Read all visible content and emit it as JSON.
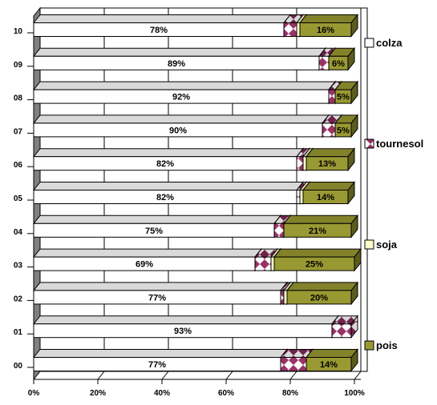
{
  "chart_data": {
    "type": "bar",
    "orientation": "horizontal",
    "stacked": true,
    "percent": true,
    "three_d": true,
    "categories": [
      "10",
      "09",
      "08",
      "07",
      "06",
      "05",
      "04",
      "03",
      "02",
      "01",
      "00"
    ],
    "series": [
      {
        "name": "colza",
        "color": "#ffffff",
        "pattern": "none",
        "values": [
          78,
          89,
          92,
          90,
          82,
          82,
          75,
          69,
          77,
          93,
          77
        ],
        "labels": [
          "78%",
          "89%",
          "92%",
          "90%",
          "82%",
          "82%",
          "75%",
          "69%",
          "77%",
          "93%",
          "77%"
        ]
      },
      {
        "name": "tournesol",
        "color": "#993366",
        "pattern": "diamond",
        "values": [
          4,
          3,
          2,
          4,
          2,
          1,
          3,
          5,
          1,
          6,
          8
        ],
        "labels": [
          "",
          "",
          "",
          "",
          "",
          "",
          "",
          "",
          "",
          "",
          ""
        ]
      },
      {
        "name": "soja",
        "color": "#ffffcc",
        "pattern": "none",
        "values": [
          1,
          0,
          0,
          0,
          1,
          1,
          0,
          1,
          1,
          0,
          0
        ],
        "labels": [
          "",
          "",
          "",
          "",
          "",
          "",
          "",
          "",
          "",
          "",
          ""
        ]
      },
      {
        "name": "pois",
        "color": "#999933",
        "pattern": "none",
        "values": [
          16,
          6,
          5,
          5,
          13,
          14,
          21,
          25,
          20,
          0,
          14
        ],
        "labels": [
          "16%",
          "6%",
          "5%",
          "5%",
          "13%",
          "14%",
          "21%",
          "25%",
          "20%",
          "",
          "14%"
        ]
      }
    ],
    "x_ticks": [
      "0%",
      "20%",
      "40%",
      "60%",
      "80%",
      "100%"
    ],
    "xlim": [
      0,
      100
    ],
    "grid": true,
    "legend_placement": "right"
  }
}
